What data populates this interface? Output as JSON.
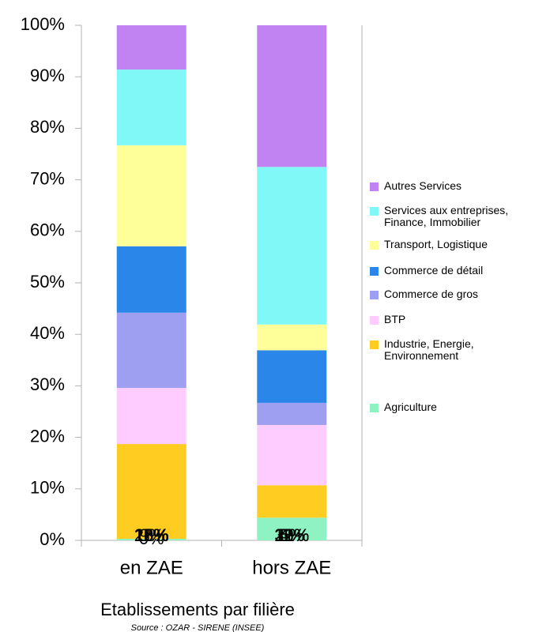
{
  "chart_data": {
    "type": "stacked_bar",
    "title": "Etablissements par filière",
    "subtitle": "Source : OZAR - SIRENE (INSEE)",
    "categories": [
      "en ZAE",
      "hors ZAE"
    ],
    "series": [
      {
        "name": "Agriculture",
        "color": "#8ff2c2",
        "values": [
          0.3,
          4.4
        ],
        "value_labels": [
          "0%",
          "4%"
        ]
      },
      {
        "name": "Industrie, Energie, Environnement",
        "color": "#ffcc22",
        "values": [
          18.4,
          6.3
        ],
        "value_labels": [
          "18%",
          "6%"
        ]
      },
      {
        "name": "BTP",
        "color": "#ffccff",
        "values": [
          10.9,
          11.7
        ],
        "value_labels": [
          "11%",
          "12%"
        ]
      },
      {
        "name": "Commerce de gros",
        "color": "#9f9ff2",
        "values": [
          14.6,
          4.3
        ],
        "value_labels": [
          "15%",
          "4%"
        ]
      },
      {
        "name": "Commerce de détail",
        "color": "#2a86e8",
        "values": [
          12.9,
          10.2
        ],
        "value_labels": [
          "13%",
          "10%"
        ]
      },
      {
        "name": "Transport, Logistique",
        "color": "#ffff99",
        "values": [
          19.6,
          5.0
        ],
        "value_labels": [
          "20%",
          "5%"
        ]
      },
      {
        "name": "Services aux entreprises, Finance, Immobilier",
        "color": "#80f8f8",
        "values": [
          14.7,
          30.6
        ],
        "value_labels": [
          "15%",
          "31%"
        ]
      },
      {
        "name": "Autres Services",
        "color": "#c283f2",
        "values": [
          8.6,
          27.5
        ],
        "value_labels": [
          "9%",
          "28%"
        ]
      }
    ],
    "ylim": [
      0,
      100
    ],
    "yticks": [
      {
        "value": 0,
        "label": "0%"
      },
      {
        "value": 10,
        "label": "10%"
      },
      {
        "value": 20,
        "label": "20%"
      },
      {
        "value": 30,
        "label": "30%"
      },
      {
        "value": 40,
        "label": "40%"
      },
      {
        "value": 50,
        "label": "50%"
      },
      {
        "value": 60,
        "label": "60%"
      },
      {
        "value": 70,
        "label": "70%"
      },
      {
        "value": 80,
        "label": "80%"
      },
      {
        "value": 90,
        "label": "90%"
      },
      {
        "value": 100,
        "label": "100%"
      }
    ],
    "legend": "right"
  }
}
